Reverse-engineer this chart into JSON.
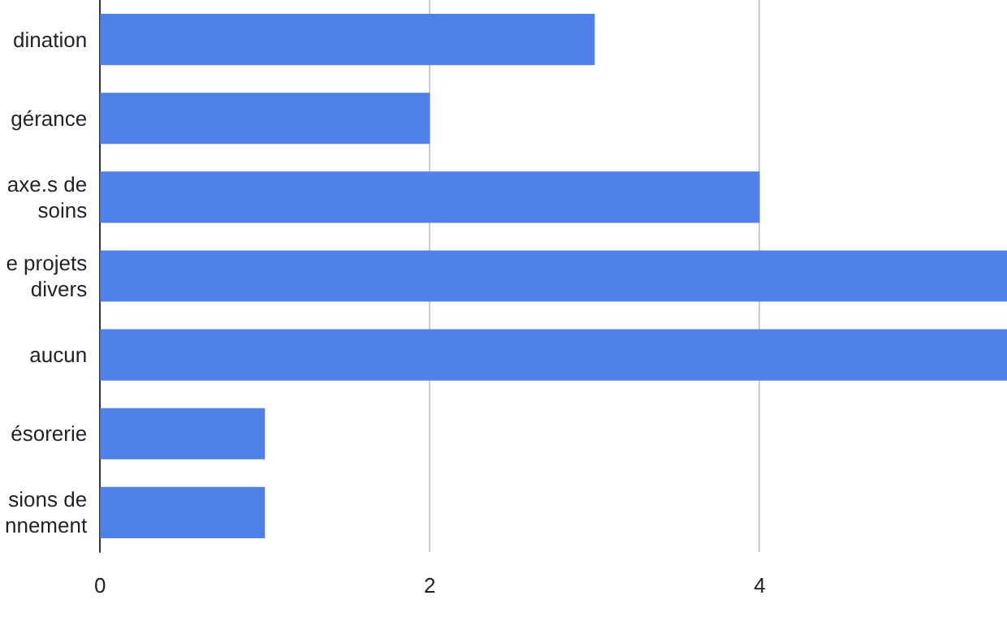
{
  "chart_data": {
    "type": "bar",
    "orientation": "horizontal",
    "categories": [
      "dination",
      "gérance",
      "axe.s de\nsoins",
      "e projets\ndivers",
      "aucun",
      "ésorerie",
      "sions de\nnnement"
    ],
    "values": [
      3,
      2,
      4,
      5.5,
      5.5,
      1,
      1
    ],
    "color": "#4f81e9",
    "xlim": [
      0,
      5.5
    ],
    "xticks": [
      0,
      2,
      4
    ],
    "grid": "x"
  }
}
